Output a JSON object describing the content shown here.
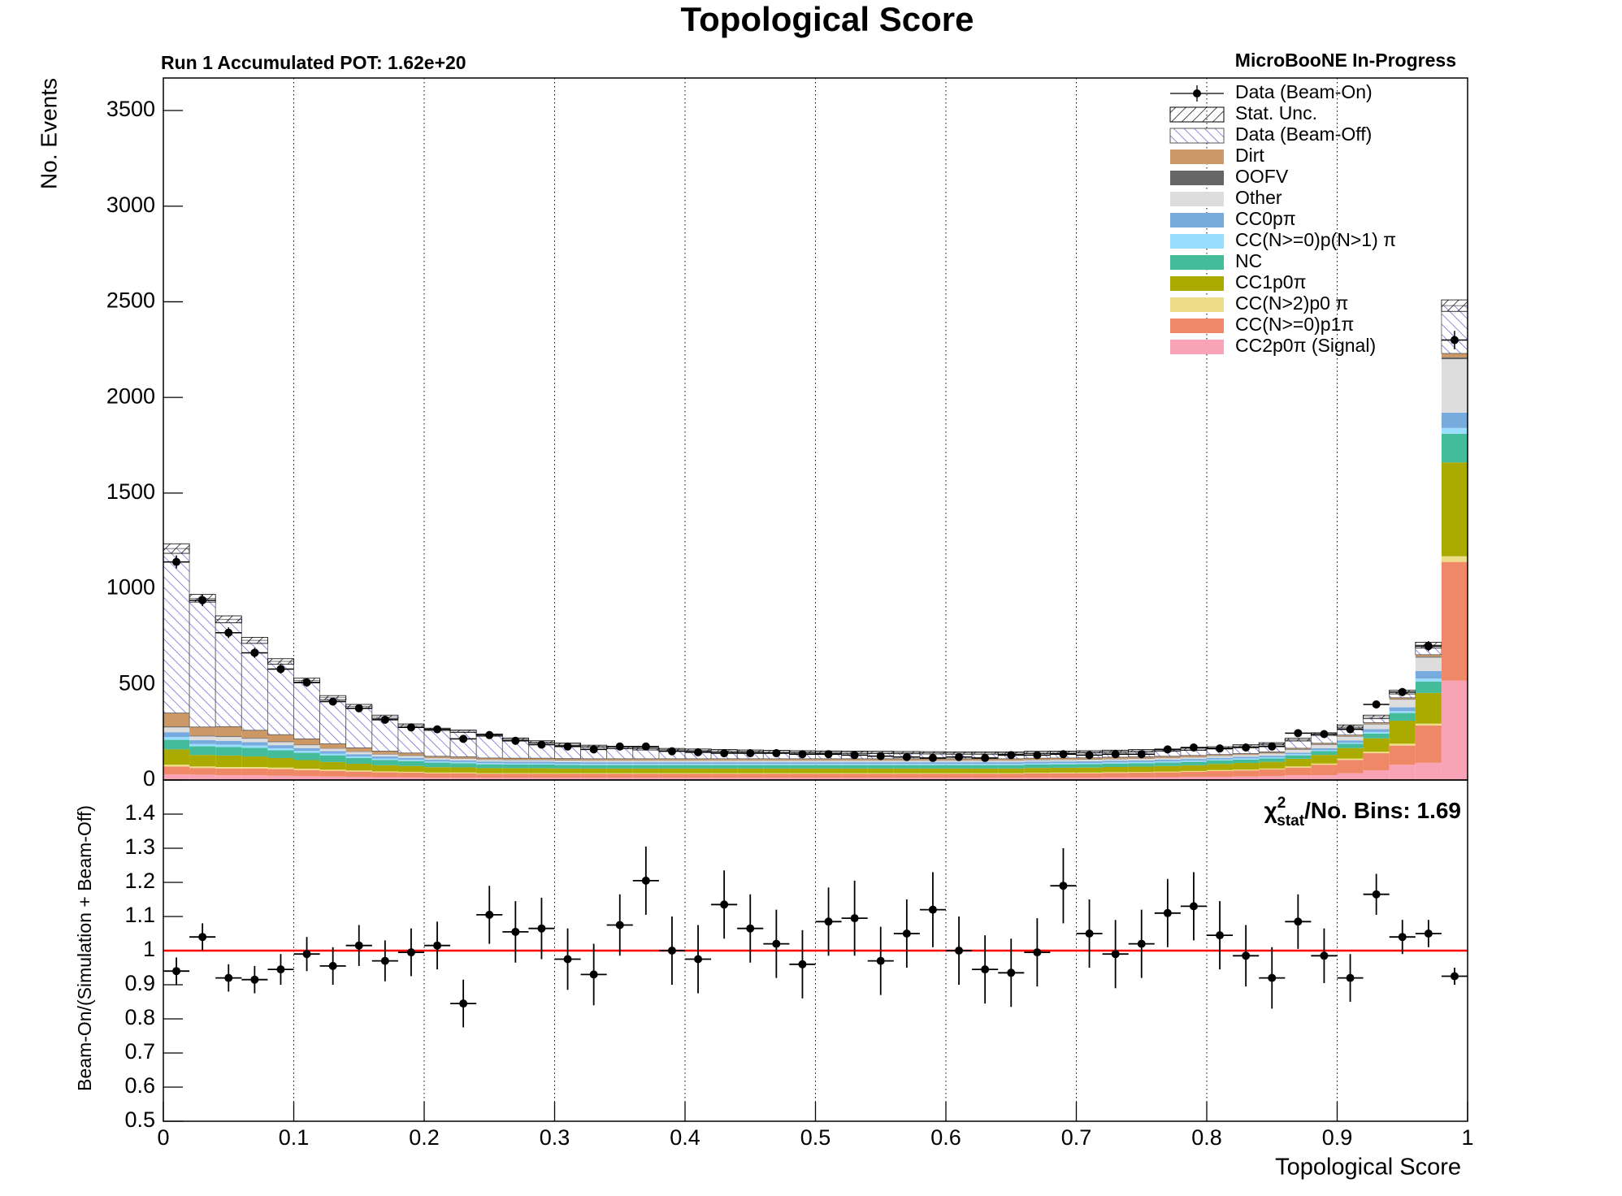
{
  "chart_data": [
    {
      "type": "histogram",
      "stacked": true,
      "title": "Topological Score",
      "subtitle_left": "Run 1 Accumulated POT: 1.62e+20",
      "subtitle_right": "MicroBooNE In-Progress",
      "ylabel": "No. Events",
      "bins": [
        0,
        0.02,
        0.04,
        0.06,
        0.08,
        0.1,
        0.12,
        0.14,
        0.16,
        0.18,
        0.2,
        0.22,
        0.24,
        0.26,
        0.28,
        0.3,
        0.32,
        0.34,
        0.36,
        0.38,
        0.4,
        0.42,
        0.44,
        0.46,
        0.48,
        0.5,
        0.52,
        0.54,
        0.56,
        0.58,
        0.6,
        0.62,
        0.64,
        0.66,
        0.68,
        0.7,
        0.72,
        0.74,
        0.76,
        0.78,
        0.8,
        0.82,
        0.84,
        0.86,
        0.88,
        0.9,
        0.92,
        0.94,
        0.96,
        0.98,
        1
      ],
      "xlim": [
        0,
        1
      ],
      "xticks": [
        0,
        0.1,
        0.2,
        0.3,
        0.4,
        0.5,
        0.6,
        0.7,
        0.8,
        0.9,
        1
      ],
      "ylim": [
        0,
        3670
      ],
      "yticks": [
        0,
        500,
        1000,
        1500,
        2000,
        2500,
        3000,
        3500
      ],
      "grid": "x",
      "legend": "top-right",
      "series": [
        {
          "name": "CC2p0π (Signal)",
          "color": "#f9a3b6",
          "values": [
            30,
            28,
            25,
            25,
            22,
            20,
            18,
            16,
            15,
            14,
            13,
            13,
            12,
            12,
            12,
            12,
            12,
            12,
            12,
            12,
            12,
            12,
            12,
            12,
            12,
            12,
            12,
            12,
            12,
            12,
            12,
            12,
            12,
            13,
            13,
            13,
            14,
            14,
            15,
            16,
            17,
            18,
            20,
            25,
            25,
            35,
            50,
            80,
            90,
            520
          ]
        },
        {
          "name": "CC(N>=0)p1π",
          "color": "#ee8866",
          "values": [
            40,
            35,
            35,
            35,
            35,
            32,
            30,
            28,
            25,
            24,
            22,
            22,
            20,
            20,
            20,
            20,
            20,
            20,
            20,
            20,
            20,
            20,
            20,
            20,
            20,
            20,
            20,
            20,
            20,
            20,
            20,
            20,
            20,
            21,
            22,
            22,
            23,
            24,
            25,
            27,
            30,
            32,
            35,
            40,
            55,
            70,
            90,
            100,
            195,
            620
          ]
        },
        {
          "name": "CC(N>2)p0 π",
          "color": "#eedd88",
          "values": [
            10,
            8,
            8,
            8,
            8,
            7,
            6,
            6,
            5,
            5,
            4,
            4,
            4,
            4,
            4,
            4,
            4,
            4,
            4,
            4,
            4,
            4,
            4,
            4,
            4,
            4,
            4,
            4,
            4,
            4,
            4,
            4,
            4,
            4,
            4,
            4,
            4,
            4,
            4,
            4,
            5,
            5,
            5,
            6,
            6,
            7,
            8,
            10,
            10,
            30
          ]
        },
        {
          "name": "CC1p0π",
          "color": "#aaaa00",
          "values": [
            80,
            60,
            60,
            55,
            50,
            45,
            40,
            35,
            32,
            30,
            28,
            27,
            26,
            25,
            25,
            24,
            24,
            24,
            24,
            24,
            24,
            24,
            24,
            24,
            24,
            24,
            24,
            24,
            24,
            24,
            24,
            24,
            24,
            25,
            25,
            26,
            27,
            28,
            29,
            30,
            32,
            34,
            35,
            40,
            45,
            55,
            70,
            120,
            160,
            490
          ]
        },
        {
          "name": "NC",
          "color": "#44bb99",
          "values": [
            50,
            45,
            45,
            45,
            40,
            38,
            35,
            30,
            28,
            26,
            24,
            22,
            20,
            20,
            20,
            19,
            18,
            18,
            18,
            18,
            18,
            18,
            18,
            18,
            18,
            18,
            18,
            18,
            18,
            18,
            18,
            18,
            18,
            18,
            18,
            18,
            18,
            18,
            18,
            18,
            18,
            18,
            18,
            18,
            20,
            22,
            25,
            40,
            60,
            150
          ]
        },
        {
          "name": "CC(N>=0)p(N>1) π",
          "color": "#99ddff",
          "values": [
            15,
            12,
            12,
            12,
            11,
            10,
            9,
            8,
            7,
            7,
            6,
            6,
            6,
            6,
            6,
            6,
            6,
            6,
            6,
            6,
            6,
            6,
            6,
            6,
            6,
            6,
            6,
            6,
            6,
            6,
            6,
            6,
            6,
            6,
            6,
            6,
            6,
            6,
            6,
            6,
            6,
            6,
            6,
            6,
            5,
            6,
            8,
            10,
            15,
            30
          ]
        },
        {
          "name": "CC0pπ",
          "color": "#77aadd",
          "values": [
            25,
            20,
            20,
            18,
            16,
            15,
            13,
            12,
            11,
            10,
            9,
            9,
            9,
            9,
            9,
            9,
            9,
            9,
            9,
            9,
            9,
            9,
            9,
            9,
            9,
            9,
            9,
            9,
            9,
            9,
            9,
            9,
            9,
            9,
            9,
            9,
            9,
            9,
            9,
            9,
            8,
            8,
            8,
            8,
            10,
            12,
            15,
            20,
            40,
            80
          ]
        },
        {
          "name": "Other",
          "color": "#dddddd",
          "values": [
            25,
            20,
            20,
            18,
            16,
            15,
            13,
            12,
            11,
            10,
            8,
            8,
            8,
            8,
            8,
            8,
            8,
            8,
            8,
            8,
            8,
            8,
            8,
            8,
            8,
            8,
            8,
            8,
            8,
            8,
            8,
            8,
            8,
            8,
            8,
            8,
            8,
            8,
            8,
            8,
            10,
            10,
            12,
            15,
            18,
            20,
            25,
            40,
            70,
            280
          ]
        },
        {
          "name": "OOFV",
          "color": "#666666",
          "values": [
            5,
            4,
            4,
            4,
            4,
            3,
            3,
            3,
            3,
            3,
            2,
            2,
            2,
            2,
            2,
            2,
            2,
            2,
            2,
            2,
            2,
            2,
            2,
            2,
            2,
            2,
            2,
            2,
            2,
            2,
            2,
            2,
            2,
            2,
            2,
            2,
            2,
            2,
            2,
            2,
            2,
            2,
            3,
            3,
            3,
            3,
            3,
            3,
            5,
            10
          ]
        },
        {
          "name": "Dirt",
          "color": "#cc9966",
          "values": [
            70,
            45,
            50,
            40,
            35,
            30,
            22,
            18,
            14,
            12,
            8,
            8,
            8,
            8,
            8,
            8,
            8,
            8,
            8,
            8,
            8,
            8,
            8,
            8,
            8,
            8,
            8,
            8,
            8,
            8,
            8,
            8,
            8,
            8,
            8,
            8,
            8,
            8,
            8,
            8,
            5,
            5,
            5,
            5,
            5,
            5,
            6,
            7,
            10,
            20
          ]
        },
        {
          "name": "Data (Beam-Off)",
          "color": "#6a5acd",
          "hatch": true,
          "values": [
            860,
            673,
            561,
            470,
            383,
            305,
            241,
            217,
            179,
            144,
            141,
            134,
            120,
            100,
            85,
            75,
            65,
            58,
            52,
            48,
            45,
            42,
            40,
            38,
            36,
            35,
            34,
            33,
            32,
            31,
            30,
            30,
            30,
            30,
            30,
            31,
            31,
            32,
            32,
            33,
            35,
            40,
            42,
            45,
            48,
            45,
            30,
            30,
            50,
            250
          ]
        }
      ],
      "stat_unc": {
        "name": "Stat. Unc.",
        "color": "#000000",
        "values": [
          25,
          20,
          18,
          16,
          14,
          12,
          11,
          10,
          9,
          8,
          6,
          6,
          6,
          6,
          6,
          6,
          6,
          6,
          6,
          6,
          6,
          6,
          6,
          6,
          6,
          6,
          6,
          6,
          6,
          6,
          6,
          6,
          6,
          6,
          6,
          6,
          6,
          6,
          6,
          6,
          6,
          6,
          6,
          7,
          7,
          8,
          9,
          10,
          15,
          30
        ]
      },
      "data": {
        "name": "Data (Beam-On)",
        "color": "#000000",
        "values": [
          1140,
          940,
          770,
          665,
          580,
          510,
          410,
          375,
          315,
          275,
          265,
          215,
          235,
          205,
          185,
          175,
          160,
          175,
          175,
          150,
          145,
          140,
          140,
          140,
          135,
          135,
          130,
          125,
          120,
          115,
          120,
          115,
          130,
          130,
          135,
          130,
          135,
          135,
          160,
          170,
          165,
          170,
          175,
          245,
          240,
          265,
          395,
          460,
          700,
          2300
        ],
        "errors": [
          34,
          31,
          28,
          26,
          24,
          23,
          20,
          19,
          18,
          17,
          16,
          15,
          15,
          14,
          14,
          13,
          13,
          13,
          13,
          12,
          12,
          12,
          12,
          12,
          12,
          12,
          11,
          11,
          11,
          11,
          11,
          11,
          11,
          11,
          12,
          11,
          12,
          12,
          13,
          13,
          13,
          13,
          13,
          16,
          15,
          16,
          20,
          21,
          26,
          48
        ]
      }
    },
    {
      "type": "scatter",
      "ylabel": "Beam-On/(Simulation + Beam-Off)",
      "xlabel": "Topological Score",
      "annotation": {
        "symbol": "χ",
        "sup": "2",
        "sub": "stat",
        "text": "/No. Bins: 1.69"
      },
      "xlim": [
        0,
        1
      ],
      "xticks": [
        0,
        0.1,
        0.2,
        0.3,
        0.4,
        0.5,
        0.6,
        0.7,
        0.8,
        0.9,
        1
      ],
      "ylim": [
        0.5,
        1.5
      ],
      "yticks": [
        0.5,
        0.6,
        0.7,
        0.8,
        0.9,
        1,
        1.1,
        1.2,
        1.3,
        1.4
      ],
      "grid": "x",
      "reference_line": 1,
      "reference_color": "#ff0000",
      "color": "#000000",
      "xerr": 0.01,
      "x": [
        0.01,
        0.03,
        0.05,
        0.07,
        0.09,
        0.11,
        0.13,
        0.15,
        0.17,
        0.19,
        0.21,
        0.23,
        0.25,
        0.27,
        0.29,
        0.31,
        0.33,
        0.35,
        0.37,
        0.39,
        0.41,
        0.43,
        0.45,
        0.47,
        0.49,
        0.51,
        0.53,
        0.55,
        0.57,
        0.59,
        0.61,
        0.63,
        0.65,
        0.67,
        0.69,
        0.71,
        0.73,
        0.75,
        0.77,
        0.79,
        0.81,
        0.83,
        0.85,
        0.87,
        0.89,
        0.91,
        0.93,
        0.95,
        0.97,
        0.99
      ],
      "values": [
        0.94,
        1.04,
        0.92,
        0.915,
        0.945,
        0.99,
        0.955,
        1.015,
        0.97,
        0.995,
        1.015,
        0.845,
        1.105,
        1.055,
        1.065,
        0.975,
        0.93,
        1.075,
        1.205,
        1.0,
        0.975,
        1.135,
        1.065,
        1.02,
        0.96,
        1.085,
        1.095,
        0.97,
        1.05,
        1.12,
        1.0,
        0.945,
        0.935,
        0.995,
        1.19,
        1.05,
        0.99,
        1.02,
        1.11,
        1.13,
        1.045,
        0.985,
        0.92,
        1.085,
        0.985,
        0.92,
        1.165,
        1.04,
        1.05,
        0.925
      ],
      "errors": [
        0.04,
        0.04,
        0.04,
        0.04,
        0.045,
        0.05,
        0.055,
        0.06,
        0.06,
        0.07,
        0.07,
        0.07,
        0.085,
        0.09,
        0.09,
        0.09,
        0.09,
        0.09,
        0.1,
        0.1,
        0.1,
        0.1,
        0.1,
        0.1,
        0.1,
        0.1,
        0.11,
        0.1,
        0.1,
        0.11,
        0.1,
        0.1,
        0.1,
        0.1,
        0.11,
        0.1,
        0.1,
        0.1,
        0.1,
        0.1,
        0.1,
        0.09,
        0.09,
        0.08,
        0.08,
        0.07,
        0.06,
        0.05,
        0.04,
        0.025
      ]
    }
  ]
}
